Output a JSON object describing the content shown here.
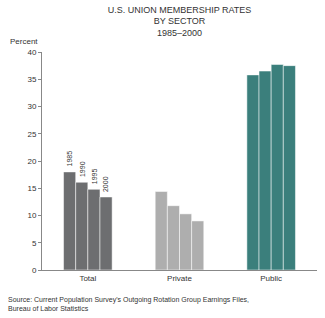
{
  "chart_data": {
    "type": "bar",
    "title": [
      "U.S. UNION MEMBERSHIP RATES",
      "BY SECTOR",
      "1985–2000"
    ],
    "ylabel": "Percent",
    "categories": [
      "Total",
      "Private",
      "Public"
    ],
    "series": [
      {
        "name": "1985",
        "colors": [
          "#6d6e70",
          "#aeaeae",
          "#3b7f7c"
        ],
        "values": [
          18.0,
          14.4,
          35.8
        ]
      },
      {
        "name": "1990",
        "colors": [
          "#6d6e70",
          "#aeaeae",
          "#3b7f7c"
        ],
        "values": [
          16.1,
          11.8,
          36.5
        ]
      },
      {
        "name": "1995",
        "colors": [
          "#6d6e70",
          "#aeaeae",
          "#3b7f7c"
        ],
        "values": [
          14.8,
          10.3,
          37.7
        ]
      },
      {
        "name": "2000",
        "colors": [
          "#6d6e70",
          "#aeaeae",
          "#3b7f7c"
        ],
        "values": [
          13.4,
          9.0,
          37.5
        ]
      }
    ],
    "ylim": [
      0,
      40
    ],
    "yticks": [
      0,
      5,
      10,
      15,
      20,
      25,
      30,
      35,
      40
    ],
    "grid": false,
    "source": [
      "Source: Current Population Survey's Outgoing Rotation Group Earnings Files,",
      "Bureau of Labor Statistics"
    ]
  }
}
